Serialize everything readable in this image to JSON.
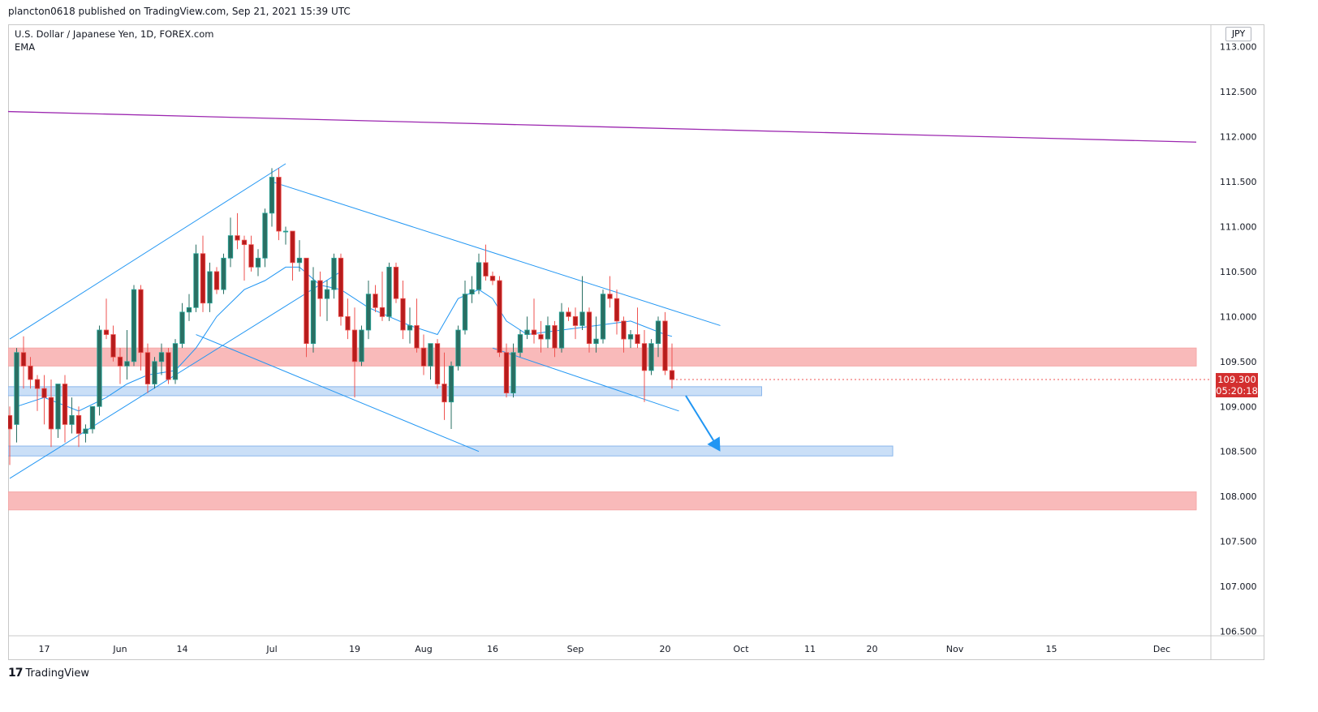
{
  "header": {
    "published": "plancton0618 published on TradingView.com, Sep 21, 2021 15:39 UTC"
  },
  "legend": {
    "symbol": "U.S. Dollar / Japanese Yen, 1D, FOREX.com",
    "indicator": "EMA"
  },
  "axis": {
    "currency": "JPY"
  },
  "price_badge": {
    "price": "109.300",
    "countdown": "05:20:18"
  },
  "footer": {
    "logo_text": "TradingView",
    "logo_mark": "17"
  },
  "colors": {
    "up": "#26a69a",
    "down": "#ef5350",
    "up_fill": "#2a6f63",
    "down_fill": "#b71c1c",
    "trendline": "#2196f3",
    "ema": "#2196f3",
    "purple_line": "#9c27b0",
    "resistance_zone": "#f9b3b3",
    "support_zone": "#c5dcf7",
    "arrow": "#2196f3"
  },
  "chart_data": {
    "type": "candlestick",
    "symbol": "USDJPY",
    "timeframe": "1D",
    "y_range": [
      106.45,
      113.25
    ],
    "y_ticks": [
      "113.000",
      "112.500",
      "112.000",
      "111.500",
      "111.000",
      "110.500",
      "110.000",
      "109.500",
      "109.000",
      "108.500",
      "108.000",
      "107.500",
      "107.000",
      "106.500"
    ],
    "x_ticks": [
      {
        "label": "17",
        "bar": 5
      },
      {
        "label": "Jun",
        "bar": 16
      },
      {
        "label": "14",
        "bar": 25
      },
      {
        "label": "Jul",
        "bar": 38
      },
      {
        "label": "19",
        "bar": 50
      },
      {
        "label": "Aug",
        "bar": 60
      },
      {
        "label": "16",
        "bar": 70
      },
      {
        "label": "Sep",
        "bar": 82
      },
      {
        "label": "20",
        "bar": 95
      },
      {
        "label": "Oct",
        "bar": 106
      },
      {
        "label": "11",
        "bar": 116
      },
      {
        "label": "20",
        "bar": 125
      },
      {
        "label": "Nov",
        "bar": 137
      },
      {
        "label": "15",
        "bar": 151
      },
      {
        "label": "Dec",
        "bar": 167
      }
    ],
    "candles": [
      [
        108.9,
        109.0,
        108.35,
        108.75
      ],
      [
        108.8,
        109.65,
        108.6,
        109.6
      ],
      [
        109.6,
        109.78,
        109.2,
        109.45
      ],
      [
        109.45,
        109.55,
        109.2,
        109.3
      ],
      [
        109.3,
        109.35,
        108.95,
        109.2
      ],
      [
        109.2,
        109.35,
        108.8,
        109.1
      ],
      [
        109.1,
        109.3,
        108.55,
        108.75
      ],
      [
        108.75,
        109.25,
        108.65,
        109.25
      ],
      [
        109.25,
        109.35,
        108.6,
        108.8
      ],
      [
        108.8,
        109.1,
        108.7,
        108.9
      ],
      [
        108.9,
        109.0,
        108.55,
        108.7
      ],
      [
        108.7,
        108.8,
        108.6,
        108.75
      ],
      [
        108.75,
        109.0,
        108.7,
        109.0
      ],
      [
        109.0,
        109.9,
        108.9,
        109.85
      ],
      [
        109.85,
        110.2,
        109.75,
        109.8
      ],
      [
        109.8,
        109.9,
        109.5,
        109.55
      ],
      [
        109.55,
        109.65,
        109.25,
        109.45
      ],
      [
        109.45,
        109.85,
        109.3,
        109.5
      ],
      [
        109.5,
        110.35,
        109.45,
        110.3
      ],
      [
        110.3,
        110.35,
        109.4,
        109.6
      ],
      [
        109.6,
        109.7,
        109.15,
        109.25
      ],
      [
        109.25,
        109.55,
        109.2,
        109.5
      ],
      [
        109.5,
        109.7,
        109.35,
        109.6
      ],
      [
        109.6,
        109.65,
        109.25,
        109.3
      ],
      [
        109.3,
        109.75,
        109.25,
        109.7
      ],
      [
        109.7,
        110.15,
        109.65,
        110.05
      ],
      [
        110.05,
        110.25,
        109.95,
        110.1
      ],
      [
        110.1,
        110.8,
        110.05,
        110.7
      ],
      [
        110.7,
        110.9,
        110.05,
        110.15
      ],
      [
        110.15,
        110.6,
        110.05,
        110.5
      ],
      [
        110.5,
        110.55,
        110.25,
        110.3
      ],
      [
        110.3,
        110.7,
        110.25,
        110.65
      ],
      [
        110.65,
        111.1,
        110.55,
        110.9
      ],
      [
        110.9,
        111.15,
        110.75,
        110.85
      ],
      [
        110.85,
        110.9,
        110.4,
        110.8
      ],
      [
        110.8,
        110.9,
        110.5,
        110.55
      ],
      [
        110.55,
        110.75,
        110.45,
        110.65
      ],
      [
        110.65,
        111.2,
        110.55,
        111.15
      ],
      [
        111.15,
        111.65,
        111.0,
        111.55
      ],
      [
        111.55,
        111.65,
        110.85,
        110.95
      ],
      [
        110.95,
        111.0,
        110.8,
        110.95
      ],
      [
        110.95,
        110.95,
        110.4,
        110.6
      ],
      [
        110.6,
        110.85,
        110.5,
        110.65
      ],
      [
        110.65,
        110.65,
        109.55,
        109.7
      ],
      [
        109.7,
        110.55,
        109.6,
        110.4
      ],
      [
        110.4,
        110.5,
        110.0,
        110.2
      ],
      [
        110.2,
        110.4,
        109.95,
        110.3
      ],
      [
        110.3,
        110.7,
        110.2,
        110.65
      ],
      [
        110.65,
        110.7,
        109.9,
        110.0
      ],
      [
        110.0,
        110.2,
        109.75,
        109.85
      ],
      [
        109.85,
        110.1,
        109.1,
        109.5
      ],
      [
        109.5,
        109.9,
        109.45,
        109.85
      ],
      [
        109.85,
        110.4,
        109.75,
        110.25
      ],
      [
        110.25,
        110.35,
        110.05,
        110.1
      ],
      [
        110.1,
        110.5,
        109.95,
        110.0
      ],
      [
        110.0,
        110.6,
        109.95,
        110.55
      ],
      [
        110.55,
        110.6,
        110.15,
        110.2
      ],
      [
        110.2,
        110.4,
        109.75,
        109.85
      ],
      [
        109.85,
        110.1,
        109.7,
        109.9
      ],
      [
        109.9,
        110.2,
        109.6,
        109.65
      ],
      [
        109.65,
        109.8,
        109.35,
        109.45
      ],
      [
        109.45,
        109.7,
        109.3,
        109.7
      ],
      [
        109.7,
        109.75,
        109.2,
        109.25
      ],
      [
        109.25,
        109.6,
        108.85,
        109.05
      ],
      [
        109.05,
        109.5,
        108.75,
        109.45
      ],
      [
        109.45,
        109.9,
        109.4,
        109.85
      ],
      [
        109.85,
        110.4,
        109.8,
        110.25
      ],
      [
        110.25,
        110.45,
        110.15,
        110.3
      ],
      [
        110.3,
        110.7,
        110.25,
        110.6
      ],
      [
        110.6,
        110.8,
        110.4,
        110.45
      ],
      [
        110.45,
        110.5,
        110.35,
        110.4
      ],
      [
        110.4,
        110.45,
        109.55,
        109.6
      ],
      [
        109.6,
        109.7,
        109.1,
        109.15
      ],
      [
        109.15,
        109.7,
        109.1,
        109.6
      ],
      [
        109.6,
        109.85,
        109.55,
        109.8
      ],
      [
        109.8,
        110.0,
        109.75,
        109.85
      ],
      [
        109.85,
        110.2,
        109.7,
        109.8
      ],
      [
        109.8,
        109.95,
        109.6,
        109.75
      ],
      [
        109.75,
        110.0,
        109.65,
        109.9
      ],
      [
        109.9,
        109.95,
        109.55,
        109.65
      ],
      [
        109.65,
        110.15,
        109.6,
        110.05
      ],
      [
        110.05,
        110.1,
        109.95,
        110.0
      ],
      [
        110.0,
        110.1,
        109.75,
        109.9
      ],
      [
        109.9,
        110.45,
        109.85,
        110.05
      ],
      [
        110.05,
        110.1,
        109.6,
        109.7
      ],
      [
        109.7,
        110.0,
        109.6,
        109.75
      ],
      [
        109.75,
        110.3,
        109.7,
        110.25
      ],
      [
        110.25,
        110.45,
        110.1,
        110.2
      ],
      [
        110.2,
        110.3,
        109.8,
        109.95
      ],
      [
        109.95,
        110.0,
        109.6,
        109.75
      ],
      [
        109.75,
        109.85,
        109.65,
        109.8
      ],
      [
        109.8,
        110.1,
        109.65,
        109.7
      ],
      [
        109.7,
        109.85,
        109.05,
        109.4
      ],
      [
        109.4,
        109.75,
        109.35,
        109.7
      ],
      [
        109.7,
        110.0,
        109.55,
        109.95
      ],
      [
        109.95,
        110.05,
        109.35,
        109.4
      ],
      [
        109.4,
        109.7,
        109.2,
        109.3
      ]
    ],
    "ema": [
      [
        1,
        109.0
      ],
      [
        5,
        109.1
      ],
      [
        10,
        108.95
      ],
      [
        14,
        109.1
      ],
      [
        17,
        109.25
      ],
      [
        20,
        109.35
      ],
      [
        24,
        109.4
      ],
      [
        27,
        109.65
      ],
      [
        30,
        110.0
      ],
      [
        34,
        110.3
      ],
      [
        37,
        110.4
      ],
      [
        40,
        110.55
      ],
      [
        42,
        110.55
      ],
      [
        45,
        110.35
      ],
      [
        48,
        110.3
      ],
      [
        52,
        110.1
      ],
      [
        55,
        110.0
      ],
      [
        58,
        109.9
      ],
      [
        62,
        109.8
      ],
      [
        65,
        110.2
      ],
      [
        68,
        110.3
      ],
      [
        70,
        110.2
      ],
      [
        72,
        109.95
      ],
      [
        75,
        109.8
      ],
      [
        80,
        109.85
      ],
      [
        85,
        109.9
      ],
      [
        90,
        109.95
      ],
      [
        95,
        109.8
      ],
      [
        96,
        109.78
      ]
    ],
    "trendlines": [
      {
        "from": [
          0,
          109.75
        ],
        "to": [
          40,
          111.7
        ]
      },
      {
        "from": [
          0,
          108.2
        ],
        "to": [
          48,
          110.5
        ]
      },
      {
        "from": [
          27,
          109.8
        ],
        "to": [
          68,
          108.5
        ]
      },
      {
        "from": [
          38,
          111.5
        ],
        "to": [
          103,
          109.9
        ]
      },
      {
        "from": [
          70,
          109.65
        ],
        "to": [
          97,
          108.95
        ]
      }
    ],
    "horizontal_line": {
      "from": [
        0,
        112.28
      ],
      "to": [
        172,
        111.94
      ]
    },
    "zones": [
      {
        "type": "resistance",
        "from_bar": 0,
        "to_bar": 172,
        "low": 109.45,
        "high": 109.65
      },
      {
        "type": "support",
        "from_bar": 0,
        "to_bar": 109,
        "low": 109.12,
        "high": 109.22
      },
      {
        "type": "support",
        "from_bar": 0,
        "to_bar": 128,
        "low": 108.45,
        "high": 108.56
      },
      {
        "type": "resistance",
        "from_bar": 0,
        "to_bar": 172,
        "low": 107.85,
        "high": 108.05
      }
    ],
    "arrow": {
      "from": [
        98,
        109.12
      ],
      "to": [
        103,
        108.5
      ]
    },
    "last_price": 109.3
  }
}
